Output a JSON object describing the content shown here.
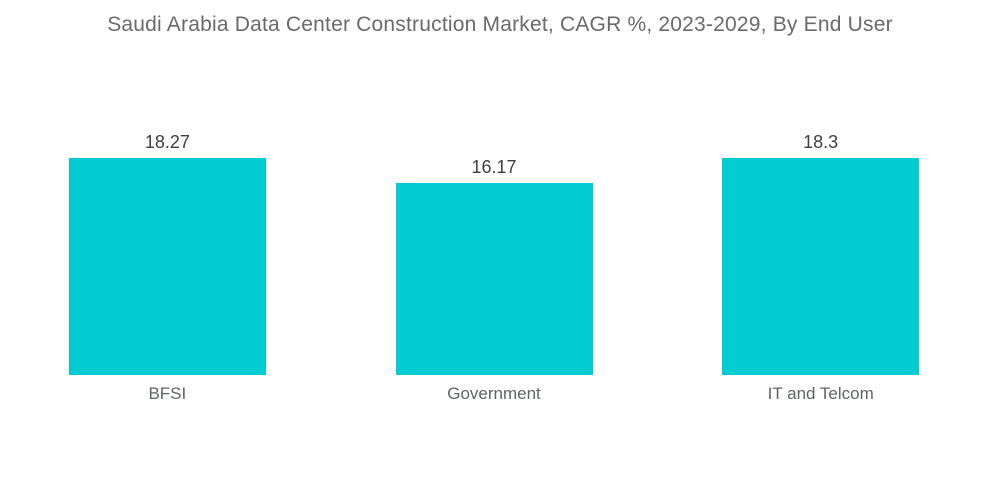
{
  "title": "Saudi Arabia Data Center Construction Market, CAGR %, 2023-2029, By End User",
  "colors": {
    "background": "#ffffff",
    "bar": "#00ccd2",
    "title_text": "#6a6a6a",
    "value_text": "#404040",
    "category_text": "#5f6368"
  },
  "chart_data": {
    "type": "bar",
    "title": "Saudi Arabia Data Center Construction Market, CAGR %, 2023-2029, By End User",
    "categories": [
      "BFSI",
      "Government",
      "IT and Telcom"
    ],
    "values": [
      18.27,
      16.17,
      18.3
    ],
    "value_labels": [
      "18.27",
      "16.17",
      "18.3"
    ],
    "xlabel": "",
    "ylabel": "",
    "ylim": [
      0,
      18.3
    ],
    "grid": false,
    "legend": "none",
    "axes_visible": false,
    "bar_color": "#00ccd2"
  }
}
